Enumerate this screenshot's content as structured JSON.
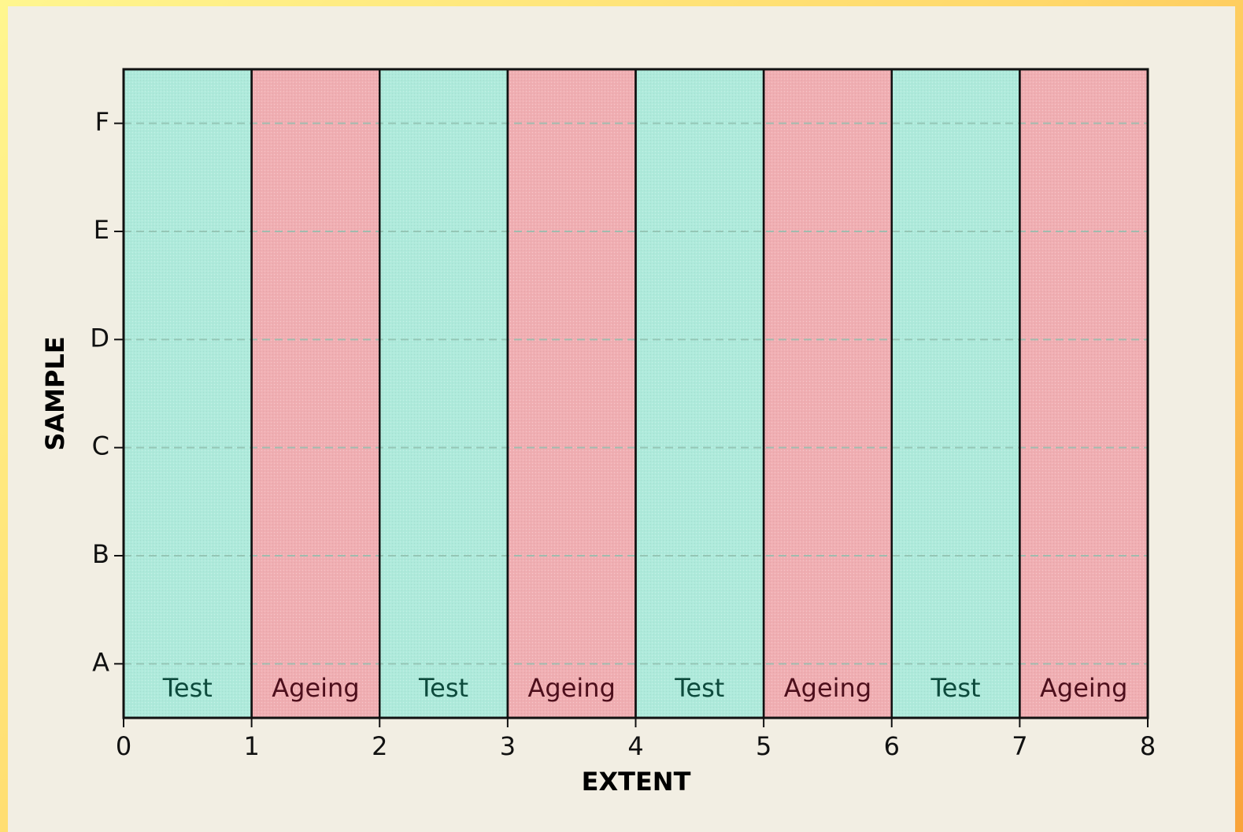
{
  "chart_data": {
    "type": "span",
    "x_label": "EXTENT",
    "y_label": "SAMPLE",
    "categories": [
      "A",
      "B",
      "C",
      "D",
      "E",
      "F"
    ],
    "xlim": [
      0,
      8
    ],
    "xticks": [
      0,
      1,
      2,
      3,
      4,
      5,
      6,
      7,
      8
    ],
    "grid": true,
    "spans": [
      {
        "label": "Test",
        "start": 0,
        "end": 1,
        "color": "#aeeadb"
      },
      {
        "label": "Ageing",
        "start": 1,
        "end": 2,
        "color": "#f0aeb2"
      },
      {
        "label": "Test",
        "start": 2,
        "end": 3,
        "color": "#aeeadb"
      },
      {
        "label": "Ageing",
        "start": 3,
        "end": 4,
        "color": "#f0aeb2"
      },
      {
        "label": "Test",
        "start": 4,
        "end": 5,
        "color": "#aeeadb"
      },
      {
        "label": "Ageing",
        "start": 5,
        "end": 6,
        "color": "#f0aeb2"
      },
      {
        "label": "Test",
        "start": 6,
        "end": 7,
        "color": "#aeeadb"
      },
      {
        "label": "Ageing",
        "start": 7,
        "end": 8,
        "color": "#f0aeb2"
      }
    ]
  }
}
